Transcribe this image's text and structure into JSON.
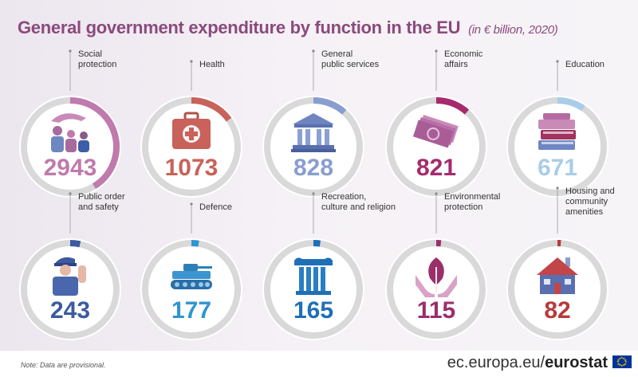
{
  "header": {
    "title": "General government expenditure by function in the EU",
    "subtitle": "(in € billion, 2020)"
  },
  "chart_data": {
    "type": "pie",
    "title": "General government expenditure by function in the EU",
    "subtitle": "(in € billion, 2020)",
    "unit": "€ billion",
    "categories": [
      {
        "label": [
          "Social",
          "protection"
        ],
        "value": 2943,
        "color": "#c07aad",
        "icon": "family-icon"
      },
      {
        "label": [
          "Health"
        ],
        "value": 1073,
        "color": "#c8625a",
        "icon": "first-aid-kit-icon"
      },
      {
        "label": [
          "General",
          "public services"
        ],
        "value": 828,
        "color": "#8a9dcf",
        "icon": "government-building-icon"
      },
      {
        "label": [
          "Economic",
          "affairs"
        ],
        "value": 821,
        "color": "#a52b6e",
        "icon": "euro-banknotes-icon"
      },
      {
        "label": [
          "Education"
        ],
        "value": 671,
        "color": "#a9cde8",
        "icon": "books-icon"
      },
      {
        "label": [
          "Public order",
          "and safety"
        ],
        "value": 243,
        "color": "#3b5aa0",
        "icon": "police-officer-icon"
      },
      {
        "label": [
          "Defence"
        ],
        "value": 177,
        "color": "#2e95d0",
        "icon": "tank-icon"
      },
      {
        "label": [
          "Recreation,",
          "culture and religion"
        ],
        "value": 165,
        "color": "#1f6fb7",
        "icon": "column-icon"
      },
      {
        "label": [
          "Environmental",
          "protection"
        ],
        "value": 115,
        "color": "#9b2f6a",
        "icon": "tree-in-hands-icon"
      },
      {
        "label": [
          "Housing and",
          "community",
          "amenities"
        ],
        "value": 82,
        "color": "#b83a3a",
        "icon": "house-icon"
      }
    ]
  },
  "footer": {
    "note": "Note: Data are provisional.",
    "site_prefix": "ec.europa.eu/",
    "site_brand": "eurostat"
  }
}
